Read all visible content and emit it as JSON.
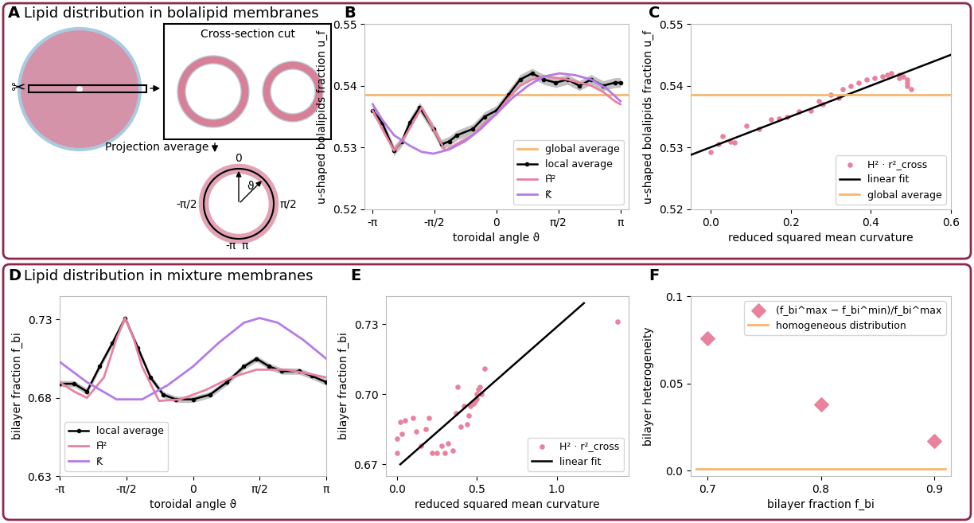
{
  "diagram": {
    "sections": [
      {
        "letter": "A",
        "title": "Lipid distribution in bolalipid membranes"
      },
      {
        "letter": "D",
        "title": "Lipid distribution in mixture membranes"
      }
    ],
    "panel_A": {
      "cut_icon": "✂",
      "box_title": "Cross-section cut",
      "arrow_label": "Projection average",
      "angles": {
        "top": "0",
        "right": "π/2",
        "left": "-π/2",
        "bottom_left": "-π",
        "bottom_right": "π"
      },
      "angle_symbol": "ϑ"
    }
  },
  "chart_data": [
    {
      "type": "line",
      "title": "B",
      "x_label": "toroidal angle ϑ",
      "y_label": "u-shaped bolalipids fraction u_f",
      "xlim": [
        -3.35,
        3.35
      ],
      "xticks": [
        {
          "value": -3.14159,
          "label": "-π"
        },
        {
          "value": -1.5708,
          "label": "-π/2"
        },
        0,
        {
          "value": 1.5708,
          "label": "π/2"
        },
        {
          "value": 3.14159,
          "label": "π"
        }
      ],
      "ylim": [
        0.52,
        0.55
      ],
      "yticks": [
        0.52,
        0.53,
        0.54,
        0.55
      ],
      "legend": "lower right",
      "series": [
        {
          "name": "global average",
          "type": "line",
          "color": "#f5b870",
          "line_style": "solid",
          "x": [
            -3.35,
            3.35
          ],
          "values": [
            0.5385,
            0.5385
          ]
        },
        {
          "name": "local average",
          "type": "line",
          "color": "#000000",
          "marker": "circle",
          "line_style": "solid",
          "x": [
            -3.14159,
            -2.9,
            -2.6,
            -2.4,
            -2.2,
            -1.95,
            -1.6,
            -1.4,
            -1.2,
            -1.0,
            -0.6,
            -0.3,
            0.0,
            0.3,
            0.6,
            0.9,
            1.2,
            1.5,
            1.8,
            2.1,
            2.4,
            2.7,
            3.0,
            3.14159
          ],
          "values": [
            0.536,
            0.534,
            0.5295,
            0.531,
            0.534,
            0.5365,
            0.533,
            0.5305,
            0.531,
            0.532,
            0.533,
            0.535,
            0.536,
            0.5385,
            0.541,
            0.542,
            0.541,
            0.5405,
            0.541,
            0.54,
            0.541,
            0.54,
            0.5405,
            0.5405
          ],
          "errors": [
            0.0008,
            0.0008,
            0.0008,
            0.0008,
            0.0008,
            0.0008,
            0.0008,
            0.0008,
            0.0008,
            0.0008,
            0.0008,
            0.0008,
            0.0008,
            0.0008,
            0.0008,
            0.0008,
            0.0008,
            0.0008,
            0.0008,
            0.0008,
            0.0008,
            0.0008,
            0.0008,
            0.0008
          ]
        },
        {
          "name": "H̃²",
          "type": "line",
          "color": "#e8829f",
          "line_style": "solid",
          "x": [
            -3.14159,
            -2.9,
            -2.6,
            -2.3,
            -1.9,
            -1.6,
            -1.3,
            -0.9,
            -0.6,
            -0.3,
            0.0,
            0.3,
            0.6,
            0.9,
            1.2,
            1.5,
            1.8,
            2.1,
            2.4,
            2.7,
            3.0,
            3.14159
          ],
          "values": [
            0.536,
            0.533,
            0.5295,
            0.532,
            0.5365,
            0.533,
            0.5295,
            0.531,
            0.532,
            0.534,
            0.5355,
            0.538,
            0.54,
            0.541,
            0.5415,
            0.5413,
            0.541,
            0.5405,
            0.54,
            0.539,
            0.5375,
            0.537
          ]
        },
        {
          "name": "K̃",
          "type": "line",
          "color": "#b57be8",
          "line_style": "solid",
          "x": [
            -3.14159,
            -2.9,
            -2.6,
            -2.2,
            -1.9,
            -1.6,
            -1.2,
            -0.8,
            -0.4,
            0.0,
            0.4,
            0.8,
            1.2,
            1.6,
            2.0,
            2.4,
            2.8,
            3.14159
          ],
          "values": [
            0.537,
            0.5345,
            0.532,
            0.5303,
            0.5293,
            0.529,
            0.5297,
            0.531,
            0.533,
            0.5355,
            0.538,
            0.54,
            0.5415,
            0.542,
            0.5417,
            0.541,
            0.5395,
            0.5375
          ]
        }
      ]
    },
    {
      "type": "scatter",
      "title": "C",
      "x_label": "reduced squared mean curvature",
      "y_label": "u-shaped bolalipids fraction u_f",
      "xlim": [
        -0.05,
        0.6
      ],
      "xticks": [
        0.0,
        0.2,
        0.4,
        0.6
      ],
      "ylim": [
        0.52,
        0.55
      ],
      "yticks": [
        0.52,
        0.53,
        0.54,
        0.55
      ],
      "legend": "lower right",
      "series": [
        {
          "name": "H² · r²_cross",
          "type": "scatter",
          "color": "#e8829f",
          "marker": "circle",
          "x": [
            0.0,
            0.02,
            0.03,
            0.05,
            0.06,
            0.09,
            0.12,
            0.15,
            0.17,
            0.19,
            0.22,
            0.25,
            0.27,
            0.28,
            0.3,
            0.32,
            0.33,
            0.35,
            0.37,
            0.39,
            0.41,
            0.43,
            0.44,
            0.45,
            0.47,
            0.48,
            0.49,
            0.49,
            0.49,
            0.5,
            0.47
          ],
          "values": [
            0.5293,
            0.5305,
            0.5318,
            0.531,
            0.5308,
            0.5335,
            0.533,
            0.5345,
            0.5347,
            0.535,
            0.5358,
            0.536,
            0.5375,
            0.537,
            0.5385,
            0.538,
            0.5395,
            0.54,
            0.5405,
            0.541,
            0.5412,
            0.5415,
            0.5418,
            0.542,
            0.5418,
            0.5415,
            0.541,
            0.5405,
            0.54,
            0.5395,
            0.5412
          ]
        },
        {
          "name": "linear fit",
          "type": "line",
          "color": "#000000",
          "line_style": "solid",
          "x": [
            -0.05,
            0.6
          ],
          "values": [
            0.5288,
            0.545
          ]
        },
        {
          "name": "global average",
          "type": "line",
          "color": "#f5b870",
          "line_style": "solid",
          "x": [
            -0.05,
            0.6
          ],
          "values": [
            0.5385,
            0.5385
          ]
        }
      ]
    },
    {
      "type": "line",
      "title": "D",
      "x_label": "toroidal angle ϑ",
      "y_label": "bilayer fraction f_bi",
      "xlim": [
        -3.14159,
        3.14159
      ],
      "xticks": [
        {
          "value": -3.14159,
          "label": "-π"
        },
        {
          "value": -1.5708,
          "label": "-π/2"
        },
        0,
        {
          "value": 1.5708,
          "label": "π/2"
        },
        {
          "value": 3.14159,
          "label": "π"
        }
      ],
      "ylim": [
        0.63,
        0.745
      ],
      "yticks": [
        0.63,
        0.68,
        0.73
      ],
      "legend": "lower left",
      "series": [
        {
          "name": "local average",
          "type": "line",
          "color": "#000000",
          "marker": "circle",
          "line_style": "solid",
          "x": [
            -3.14159,
            -2.8,
            -2.5,
            -2.2,
            -1.9,
            -1.6,
            -1.3,
            -1.0,
            -0.7,
            -0.4,
            0.0,
            0.4,
            0.8,
            1.2,
            1.5,
            1.8,
            2.1,
            2.5,
            2.8,
            3.14159
          ],
          "values": [
            0.689,
            0.689,
            0.684,
            0.7,
            0.715,
            0.731,
            0.712,
            0.693,
            0.682,
            0.679,
            0.679,
            0.682,
            0.69,
            0.7,
            0.705,
            0.7,
            0.697,
            0.697,
            0.694,
            0.69
          ],
          "errors": [
            0.002,
            0.002,
            0.002,
            0.002,
            0.002,
            0.002,
            0.002,
            0.002,
            0.002,
            0.002,
            0.002,
            0.002,
            0.002,
            0.002,
            0.002,
            0.002,
            0.002,
            0.002,
            0.002,
            0.002
          ]
        },
        {
          "name": "H̃²",
          "type": "line",
          "color": "#e8829f",
          "line_style": "solid",
          "x": [
            -3.14159,
            -2.8,
            -2.5,
            -2.1,
            -1.8,
            -1.6,
            -1.4,
            -1.2,
            -0.8,
            -0.3,
            0.3,
            0.9,
            1.5,
            2.2,
            2.8,
            3.14159
          ],
          "values": [
            0.69,
            0.684,
            0.68,
            0.693,
            0.718,
            0.731,
            0.718,
            0.7,
            0.678,
            0.679,
            0.685,
            0.693,
            0.698,
            0.698,
            0.695,
            0.693
          ]
        },
        {
          "name": "K̃",
          "type": "line",
          "color": "#b57be8",
          "line_style": "solid",
          "x": [
            -3.14159,
            -2.5,
            -1.8,
            -1.2,
            -0.6,
            0.0,
            0.6,
            1.2,
            1.57,
            2.0,
            2.6,
            3.14159
          ],
          "values": [
            0.703,
            0.69,
            0.679,
            0.679,
            0.688,
            0.7,
            0.715,
            0.728,
            0.731,
            0.728,
            0.717,
            0.705
          ]
        }
      ]
    },
    {
      "type": "scatter",
      "title": "E",
      "x_label": "reduced squared mean curvature",
      "y_label": "bilayer fraction f_bi",
      "xlim": [
        -0.07,
        1.45
      ],
      "xticks": [
        0.0,
        0.5,
        1.0
      ],
      "ylim": [
        0.665,
        0.742
      ],
      "yticks": [
        0.67,
        {
          "value": 0.7,
          "label": "0.70"
        },
        0.73
      ],
      "legend": "lower right",
      "series": [
        {
          "name": "H² · r²_cross",
          "type": "scatter",
          "color": "#e8829f",
          "marker": "circle",
          "x": [
            0.0,
            0.0,
            0.02,
            0.03,
            0.05,
            0.1,
            0.12,
            0.15,
            0.18,
            0.2,
            0.22,
            0.25,
            0.28,
            0.3,
            0.32,
            0.35,
            0.37,
            0.38,
            0.4,
            0.42,
            0.44,
            0.45,
            0.46,
            0.48,
            0.49,
            0.5,
            0.5,
            0.51,
            0.52,
            0.53,
            0.55,
            1.38
          ],
          "values": [
            0.675,
            0.681,
            0.688,
            0.683,
            0.689,
            0.69,
            0.684,
            0.678,
            0.685,
            0.69,
            0.675,
            0.675,
            0.678,
            0.675,
            0.679,
            0.676,
            0.692,
            0.703,
            0.686,
            0.695,
            0.687,
            0.691,
            0.695,
            0.696,
            0.697,
            0.7,
            0.698,
            0.702,
            0.703,
            0.7,
            0.711,
            0.731
          ]
        },
        {
          "name": "linear fit",
          "type": "line",
          "color": "#000000",
          "line_style": "solid",
          "x": [
            0.02,
            1.17
          ],
          "values": [
            0.67,
            0.739
          ]
        }
      ]
    },
    {
      "type": "scatter",
      "title": "F",
      "x_label": "bilayer fraction f_bi",
      "y_label": "bilayer heterogeneity",
      "xlim": [
        0.685,
        0.915
      ],
      "xticks": [
        0.7,
        0.8,
        0.9
      ],
      "ylim": [
        -0.003,
        0.1
      ],
      "yticks": [
        0.0,
        0.05,
        0.1
      ],
      "legend": "upper right",
      "series": [
        {
          "name": "(f_bi^max − f_bi^min)/f_bi^max",
          "type": "scatter",
          "color": "#e8829f",
          "marker": "diamond",
          "x": [
            0.7,
            0.8,
            0.9
          ],
          "values": [
            0.076,
            0.038,
            0.017
          ]
        },
        {
          "name": "homogeneous distribution",
          "type": "line",
          "color": "#f5b870",
          "line_style": "solid",
          "x": [
            0.69,
            0.91
          ],
          "values": [
            0.001,
            0.001
          ]
        }
      ]
    }
  ]
}
